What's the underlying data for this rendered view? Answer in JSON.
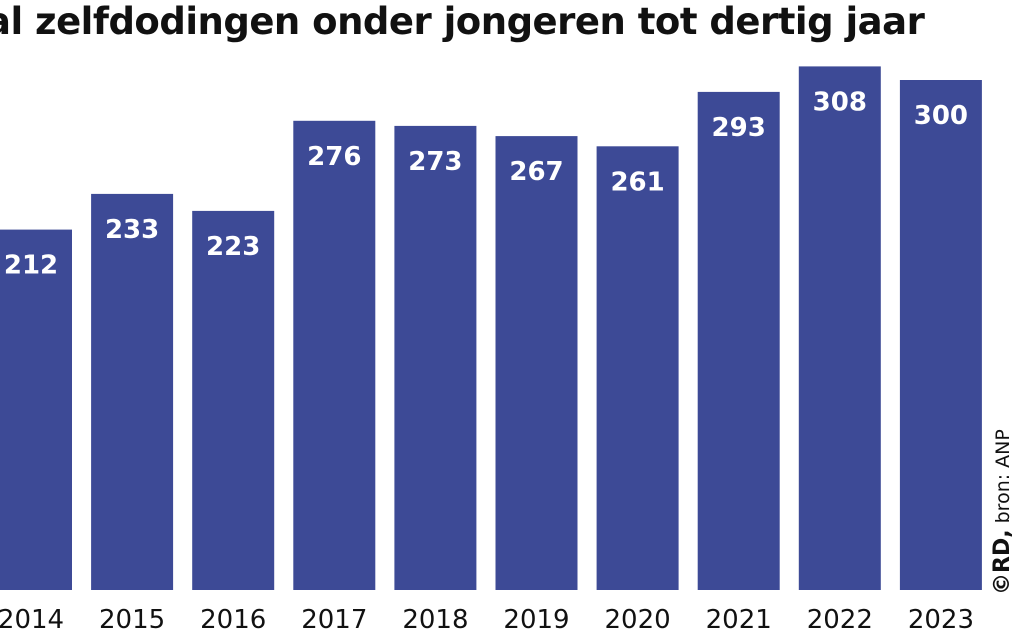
{
  "title": "al zelfdodingen onder jongeren tot dertig jaar",
  "credit": {
    "brand": "©RD,",
    "source": "bron: ANP"
  },
  "colors": {
    "bar": "#3d4a96",
    "label": "#ffffff",
    "text": "#111111"
  },
  "chart_data": {
    "type": "bar",
    "title": "al zelfdodingen onder jongeren tot dertig jaar",
    "categories": [
      "2014",
      "2015",
      "2016",
      "2017",
      "2018",
      "2019",
      "2020",
      "2021",
      "2022",
      "2023"
    ],
    "values": [
      212,
      233,
      223,
      276,
      273,
      267,
      261,
      293,
      308,
      300
    ],
    "xlabel": "",
    "ylabel": "",
    "grid": false,
    "legend": "none",
    "data_labels": true
  }
}
